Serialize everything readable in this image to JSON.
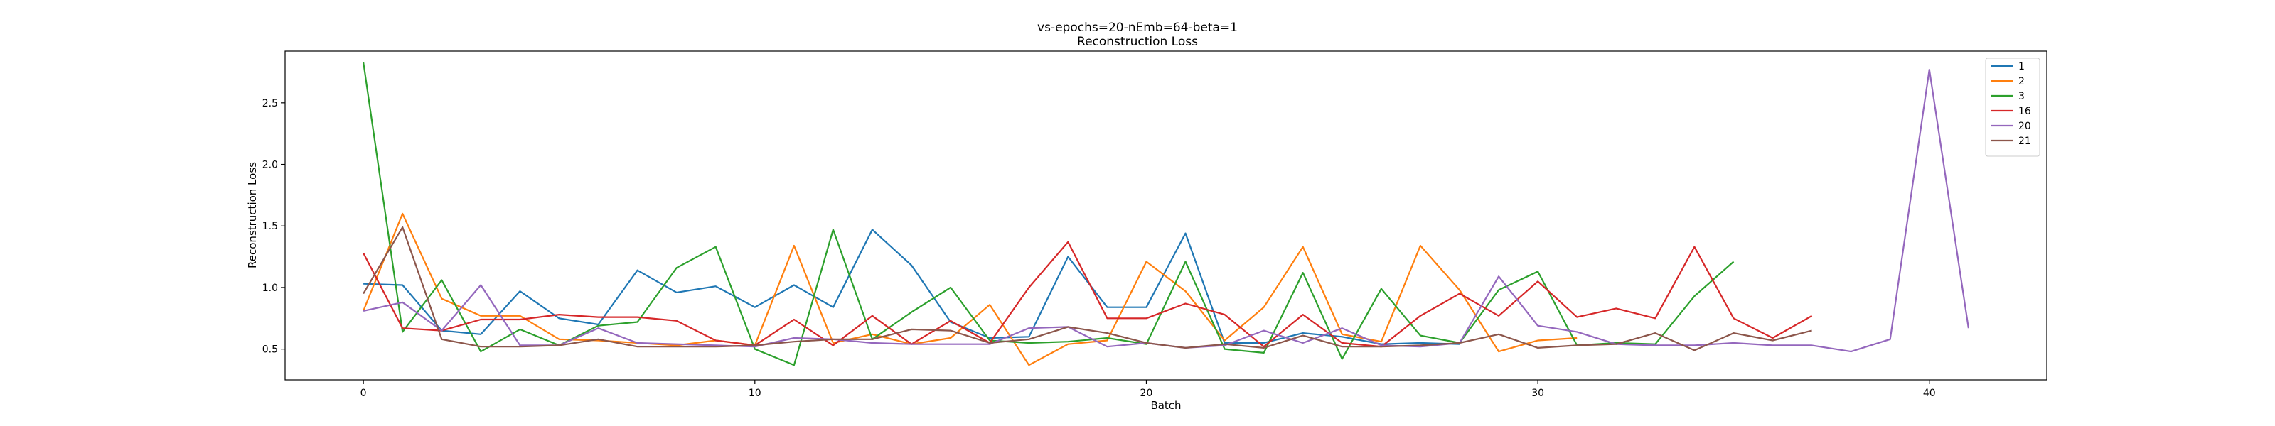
{
  "chart_data": {
    "type": "line",
    "title": "vs-epochs=20-nEmb=64-beta=1",
    "subtitle": "Reconstruction Loss",
    "xlabel": "Batch",
    "ylabel": "Reconstruction Loss",
    "xlim": [
      -2,
      43
    ],
    "ylim": [
      0.25,
      2.92
    ],
    "xticks": [
      0,
      10,
      20,
      30,
      40
    ],
    "yticks": [
      0.5,
      1.0,
      1.5,
      2.0,
      2.5
    ],
    "ytick_labels": [
      "0.5",
      "1.0",
      "1.5",
      "2.0",
      "2.5"
    ],
    "grid": false,
    "legend_position": "top-right",
    "series": [
      {
        "name": "1",
        "color": "#1f77b4",
        "values": [
          1.03,
          1.02,
          0.65,
          0.62,
          0.97,
          0.75,
          0.7,
          1.14,
          0.96,
          1.01,
          0.84,
          1.02,
          0.84,
          1.47,
          1.18,
          0.72,
          0.59,
          0.6,
          1.25,
          0.84,
          0.84,
          1.44,
          0.55,
          0.55,
          0.63,
          0.6,
          0.54,
          0.55,
          0.54
        ]
      },
      {
        "name": "2",
        "color": "#ff7f0e",
        "values": [
          0.81,
          1.6,
          0.91,
          0.77,
          0.77,
          0.58,
          0.57,
          0.55,
          0.53,
          0.57,
          0.53,
          1.34,
          0.55,
          0.62,
          0.54,
          0.59,
          0.86,
          0.37,
          0.54,
          0.57,
          1.21,
          0.97,
          0.57,
          0.84,
          1.33,
          0.62,
          0.56,
          1.34,
          0.98,
          0.48,
          0.57,
          0.59
        ]
      },
      {
        "name": "3",
        "color": "#2ca02c",
        "values": [
          2.83,
          0.64,
          1.06,
          0.48,
          0.66,
          0.53,
          0.69,
          0.72,
          1.16,
          1.33,
          0.5,
          0.37,
          1.47,
          0.58,
          0.8,
          1.0,
          0.57,
          0.55,
          0.56,
          0.59,
          0.54,
          1.21,
          0.5,
          0.47,
          1.12,
          0.42,
          0.99,
          0.61,
          0.55,
          0.98,
          1.13,
          0.53,
          0.55,
          0.54,
          0.93,
          1.21
        ]
      },
      {
        "name": "16",
        "color": "#d62728",
        "values": [
          1.28,
          0.67,
          0.65,
          0.74,
          0.74,
          0.78,
          0.76,
          0.76,
          0.73,
          0.57,
          0.53,
          0.74,
          0.53,
          0.77,
          0.54,
          0.73,
          0.55,
          1.0,
          1.37,
          0.75,
          0.75,
          0.87,
          0.78,
          0.52,
          0.78,
          0.55,
          0.52,
          0.77,
          0.95,
          0.77,
          1.05,
          0.76,
          0.83,
          0.75,
          1.33,
          0.75,
          0.59,
          0.77
        ]
      },
      {
        "name": "20",
        "color": "#9467bd",
        "values": [
          0.81,
          0.88,
          0.65,
          1.02,
          0.53,
          0.53,
          0.67,
          0.55,
          0.54,
          0.53,
          0.52,
          0.59,
          0.58,
          0.55,
          0.54,
          0.54,
          0.54,
          0.67,
          0.68,
          0.52,
          0.55,
          0.51,
          0.53,
          0.65,
          0.55,
          0.67,
          0.53,
          0.52,
          0.55,
          1.09,
          0.69,
          0.64,
          0.54,
          0.53,
          0.53,
          0.55,
          0.53,
          0.53,
          0.48,
          0.58,
          2.77,
          0.67
        ]
      },
      {
        "name": "21",
        "color": "#8c564b",
        "values": [
          0.95,
          1.49,
          0.58,
          0.52,
          0.52,
          0.53,
          0.58,
          0.52,
          0.52,
          0.52,
          0.53,
          0.56,
          0.58,
          0.58,
          0.66,
          0.65,
          0.55,
          0.58,
          0.68,
          0.63,
          0.55,
          0.51,
          0.54,
          0.51,
          0.61,
          0.52,
          0.52,
          0.53,
          0.55,
          0.62,
          0.51,
          0.53,
          0.54,
          0.63,
          0.49,
          0.63,
          0.57,
          0.65
        ]
      }
    ]
  }
}
